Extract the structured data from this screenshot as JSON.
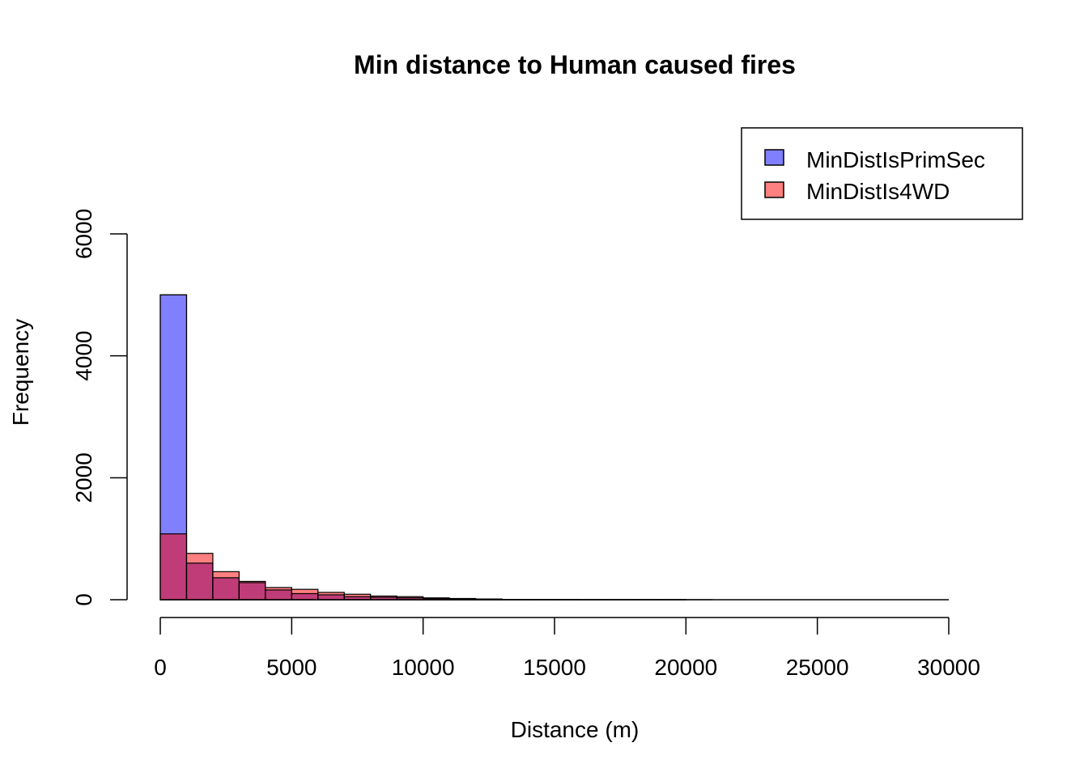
{
  "chart_data": {
    "type": "bar",
    "subtype": "overlaid-histogram",
    "title": "Min distance to Human caused fires",
    "xlabel": "Distance (m)",
    "ylabel": "Frequency",
    "xlim": [
      0,
      30000
    ],
    "ylim": [
      0,
      6000
    ],
    "x_ticks": [
      0,
      5000,
      10000,
      15000,
      20000,
      25000,
      30000
    ],
    "y_ticks": [
      0,
      2000,
      4000,
      6000
    ],
    "bin_width": 1000,
    "bin_edges": [
      0,
      1000,
      2000,
      3000,
      4000,
      5000,
      6000,
      7000,
      8000,
      9000,
      10000,
      11000,
      12000,
      13000,
      14000,
      15000,
      16000,
      17000,
      18000,
      19000,
      20000,
      21000,
      22000,
      23000,
      24000,
      25000,
      26000,
      27000,
      28000,
      29000,
      30000
    ],
    "grid": false,
    "legend_position": "top-right",
    "series": [
      {
        "name": "MinDistIsPrimSec",
        "color": "#8080ff",
        "values": [
          5000,
          600,
          360,
          280,
          160,
          100,
          80,
          50,
          40,
          30,
          20,
          15,
          10,
          5,
          3,
          2,
          1,
          1,
          1,
          1,
          0,
          0,
          0,
          0,
          0,
          0,
          0,
          0,
          0,
          0
        ]
      },
      {
        "name": "MinDistIs4WD",
        "color": "#ff8080",
        "values": [
          1080,
          760,
          460,
          300,
          200,
          170,
          120,
          90,
          60,
          50,
          30,
          20,
          10,
          5,
          3,
          2,
          1,
          1,
          1,
          1,
          1,
          0,
          0,
          0,
          0,
          0,
          0,
          0,
          0,
          0
        ]
      }
    ],
    "overlap_color": "#c03c78"
  }
}
